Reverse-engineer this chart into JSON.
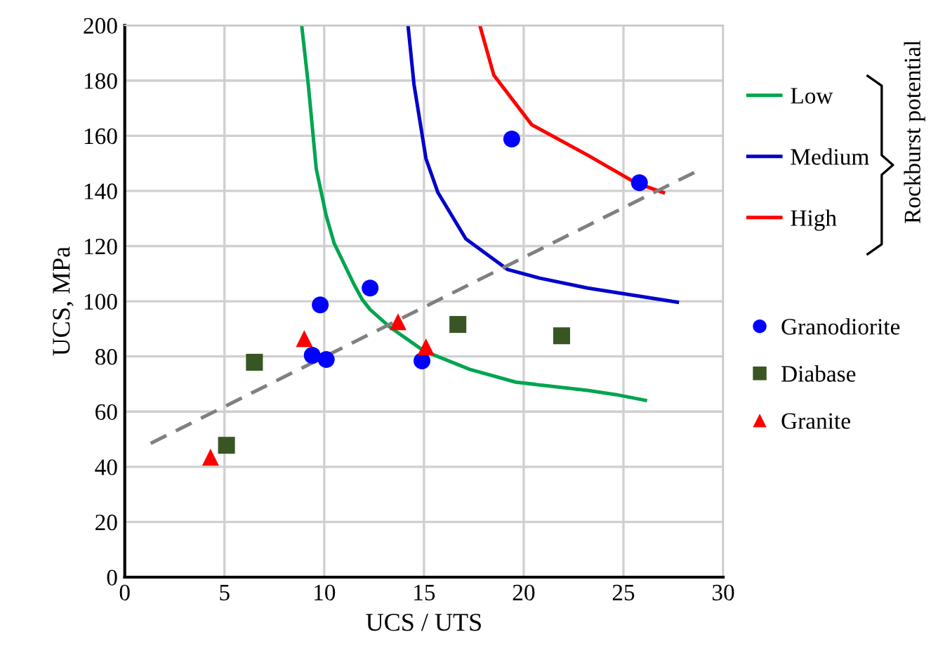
{
  "chart_data": {
    "type": "scatter",
    "xlabel": "UCS / UTS",
    "ylabel": "UCS, MPa",
    "legend_title": "Rockburst potential",
    "xlim": [
      0,
      30
    ],
    "ylim": [
      0,
      200
    ],
    "xticks": [
      0,
      5,
      10,
      15,
      20,
      25,
      30
    ],
    "yticks": [
      0,
      20,
      40,
      60,
      80,
      100,
      120,
      140,
      160,
      180,
      200
    ],
    "grid": true,
    "legend": "right",
    "series": [
      {
        "name": "Low",
        "type": "line",
        "color": "#00a550",
        "marker": "none",
        "line_style": "solid",
        "x": [
          8.87,
          9.2,
          9.6,
          10.1,
          10.5,
          11.5,
          11.9,
          12.3,
          13.3,
          15.0,
          17.3,
          19.6,
          23.2,
          24.6,
          26.1
        ],
        "values": [
          200,
          178.6,
          148,
          131,
          121,
          106,
          100.7,
          97,
          90.6,
          82,
          75.3,
          70.7,
          67.7,
          66.2,
          64.1
        ]
      },
      {
        "name": "Medium",
        "type": "line",
        "color": "#0000cc",
        "marker": "none",
        "line_style": "solid",
        "x": [
          14.2,
          14.5,
          15.1,
          15.7,
          17.1,
          19.2,
          20.8,
          23.2,
          27.7
        ],
        "values": [
          200,
          178.6,
          151.7,
          139.4,
          122.6,
          111.5,
          108.4,
          104.8,
          99.7
        ]
      },
      {
        "name": "High",
        "type": "line",
        "color": "#ff0000",
        "marker": "none",
        "line_style": "solid",
        "x": [
          17.8,
          18.5,
          20.4,
          23.2,
          25.6,
          27.0
        ],
        "values": [
          200,
          182,
          164,
          153,
          143,
          139.4
        ]
      },
      {
        "type": "line",
        "color": "#808080",
        "marker": "none",
        "line_style": "dashed",
        "x": [
          1.3,
          28.8
        ],
        "values": [
          48.5,
          147.6
        ]
      },
      {
        "name": "Granodiorite",
        "color": "#0000ff",
        "marker": "circle",
        "x": [
          9.8,
          9.4,
          10.1,
          12.3,
          14.9,
          19.4,
          25.8
        ],
        "values": [
          98.7,
          80.4,
          78.9,
          104.8,
          78.4,
          158.8,
          143
        ]
      },
      {
        "name": "Diabase",
        "color": "#375623",
        "marker": "square",
        "x": [
          6.5,
          5.1,
          16.7,
          21.9
        ],
        "values": [
          77.9,
          47.8,
          91.6,
          87.5
        ]
      },
      {
        "name": "Granite",
        "color": "#ff0000",
        "marker": "triangle",
        "x": [
          4.3,
          9.0,
          13.7,
          15.1
        ],
        "values": [
          43.5,
          86.5,
          92.6,
          83.5
        ]
      }
    ]
  }
}
